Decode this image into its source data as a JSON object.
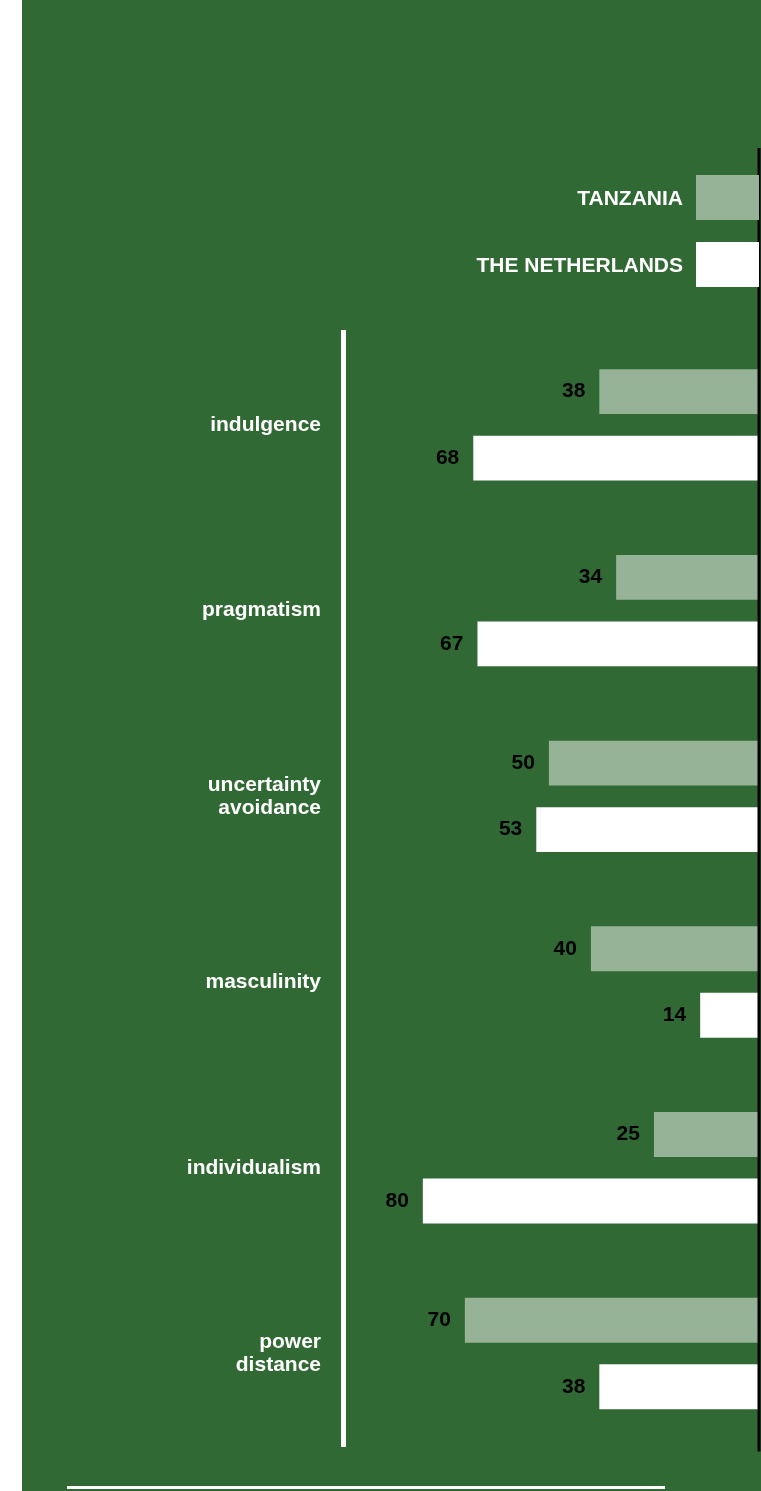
{
  "chart_data": {
    "type": "bar",
    "orientation": "horizontal",
    "categories": [
      "indulgence",
      "pragmatism",
      "uncertainty avoidance",
      "masculinity",
      "individualism",
      "power distance"
    ],
    "series": [
      {
        "name": "TANZANIA",
        "color": "#97b397",
        "values": [
          38,
          34,
          50,
          40,
          25,
          70
        ]
      },
      {
        "name": "THE NETHERLANDS",
        "color": "#ffffff",
        "values": [
          68,
          67,
          53,
          14,
          80,
          38
        ]
      }
    ],
    "xlim": [
      99,
      0
    ],
    "tick_labels": "y",
    "data_labels": true,
    "legend": "top right",
    "grid": false
  }
}
